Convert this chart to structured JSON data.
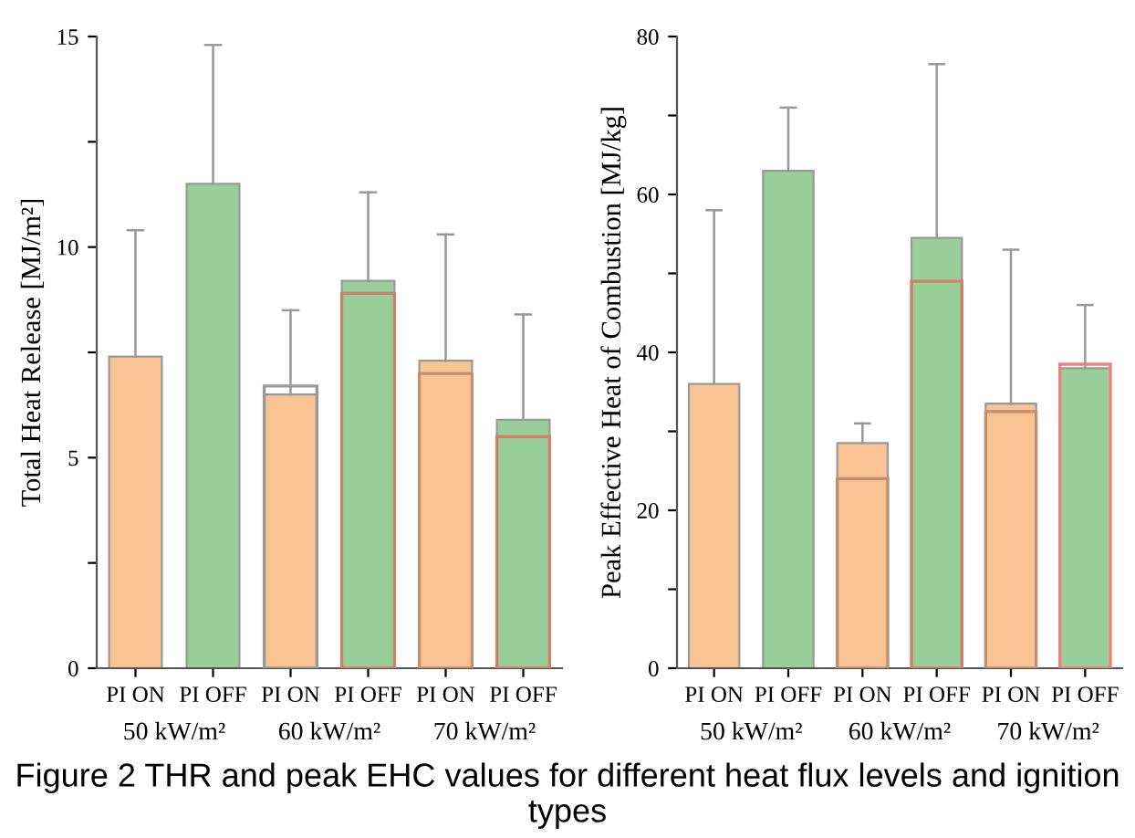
{
  "chart_data": [
    {
      "type": "bar",
      "ylabel": "Total Heat Release [MJ/m²]",
      "categories": [
        "PI ON",
        "PI OFF",
        "PI ON",
        "PI OFF",
        "PI ON",
        "PI OFF"
      ],
      "series": [
        {
          "colors": [
            "#f9c393",
            "#98cf98",
            "#f9c393",
            "#98cf98",
            "#f9c393",
            "#98cf98"
          ],
          "values": [
            7.4,
            11.5,
            6.5,
            9.2,
            7.3,
            5.9
          ],
          "errors": [
            [
              7.4,
              10.4
            ],
            [
              11.5,
              14.8
            ],
            [
              6.5,
              8.5
            ],
            [
              9.2,
              11.3
            ],
            [
              7.3,
              10.3
            ],
            [
              5.9,
              8.4
            ]
          ]
        },
        {
          "type": "bar",
          "colors": [
            "#999999",
            "#999999",
            "#999999",
            "#d0806a",
            "#c09070",
            "#d0806a"
          ],
          "values": [
            null,
            null,
            6.7,
            8.9,
            7.0,
            5.5
          ]
        }
      ],
      "ylim": [
        0,
        15
      ],
      "yticks": [
        0,
        {
          "value": 2.5,
          "label": null
        },
        5,
        {
          "value": 7.5,
          "label": null
        },
        10,
        {
          "value": 12.5,
          "label": null
        },
        15
      ],
      "annotations": [
        "50 kW/m²",
        "60 kW/m²",
        "70 kW/m²"
      ]
    },
    {
      "type": "bar",
      "ylabel": "Peak Effective Heat of Combustion [MJ/kg]",
      "categories": [
        "PI ON",
        "PI OFF",
        "PI ON",
        "PI OFF",
        "PI ON",
        "PI OFF"
      ],
      "series": [
        {
          "colors": [
            "#f9c393",
            "#98cf98",
            "#f9c393",
            "#98cf98",
            "#f9c393",
            "#98cf98"
          ],
          "values": [
            36,
            63,
            28.5,
            54.5,
            33.5,
            38
          ],
          "errors": [
            [
              36,
              58
            ],
            [
              63,
              71
            ],
            [
              28.5,
              31
            ],
            [
              54.5,
              76.5
            ],
            [
              33.5,
              53
            ],
            [
              38,
              46
            ]
          ]
        },
        {
          "type": "bar",
          "colors": [
            "#999999",
            "#999999",
            "#c09070",
            "#d0806a",
            "#c09070",
            "#f08080"
          ],
          "values": [
            null,
            null,
            24,
            49,
            32.5,
            38.5
          ]
        }
      ],
      "ylim": [
        0,
        80
      ],
      "yticks": [
        0,
        {
          "value": 10,
          "label": null
        },
        20,
        {
          "value": 30,
          "label": null
        },
        40,
        {
          "value": 50,
          "label": null
        },
        60,
        {
          "value": 70,
          "label": null
        },
        80
      ],
      "annotations": [
        "50 kW/m²",
        "60 kW/m²",
        "70 kW/m²",
        "Figure 2 THR and peak EHC values for different heat flux levels and ignition types"
      ]
    }
  ]
}
